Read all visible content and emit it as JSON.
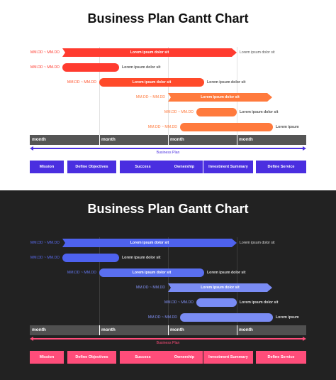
{
  "title": "Business Plan Gantt Chart",
  "date_label": "MM.DD ~ MM.DD",
  "bar_text": "Lorem ipsum dolor sit",
  "short_text": "Lorem ipsum",
  "months": [
    "month",
    "month",
    "month",
    "month"
  ],
  "plan_label": "Business Plan",
  "phases": [
    "Mission",
    "Define Objectives",
    "Success",
    "Ownership",
    "Investment Summary",
    "Define Service"
  ],
  "themes": {
    "light": {
      "date_colors": [
        "#ff3b2f",
        "#ff3b2f",
        "#ff5530",
        "#ff7a3d",
        "#ff7a3d",
        "#ff7a3d"
      ],
      "bar_colors": [
        "#ff3b2f",
        "#ff3b2f",
        "#ff4a2a",
        "#ff7a3d",
        "#ff7a3d",
        "#ff7a3d"
      ],
      "accent": "#4a2ee0",
      "note_color": "#555555"
    },
    "dark": {
      "date_colors": [
        "#5a6bf0",
        "#5a6bf0",
        "#6478f2",
        "#8090f4",
        "#8090f4",
        "#8090f4"
      ],
      "bar_colors": [
        "#4e62ee",
        "#4e62ee",
        "#5a6ff0",
        "#7a8cf4",
        "#7a8cf4",
        "#7a8cf4"
      ],
      "accent": "#ff4d7a",
      "note_color": "#dddddd"
    }
  }
}
